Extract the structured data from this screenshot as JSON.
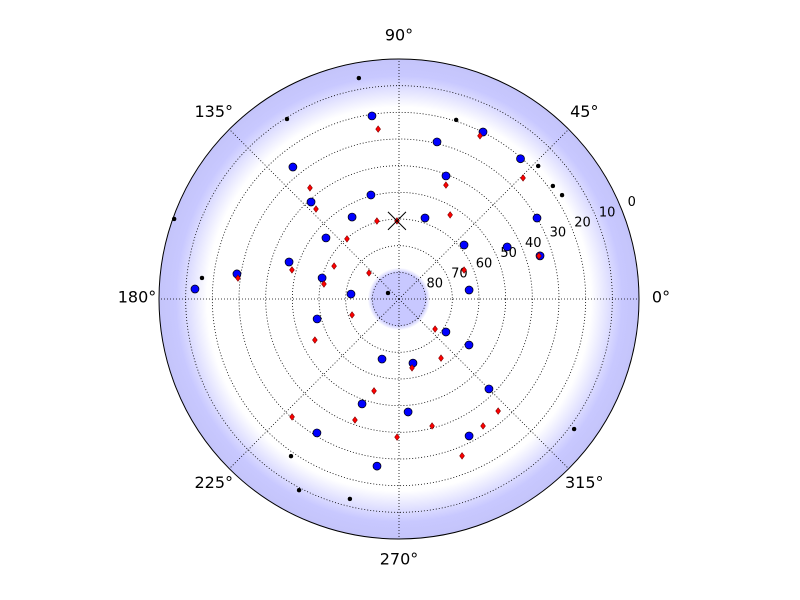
{
  "chart_data": {
    "type": "polar",
    "rlim": [
      90,
      0
    ],
    "rticks": [
      0,
      10,
      20,
      30,
      40,
      50,
      60,
      70,
      80
    ],
    "thetaticks": [
      {
        "value": 0,
        "label": "0°"
      },
      {
        "value": 45,
        "label": "45°"
      },
      {
        "value": 90,
        "label": "90°"
      },
      {
        "value": 135,
        "label": "135°"
      },
      {
        "value": 180,
        "label": "180°"
      },
      {
        "value": 225,
        "label": "225°"
      },
      {
        "value": 270,
        "label": "270°"
      },
      {
        "value": 315,
        "label": "315°"
      }
    ],
    "grid": true,
    "series": [
      {
        "color": "#000000",
        "marker": "dot",
        "theta": [
          100.3,
          121.9,
          72.3,
          43.7,
          36.3,
          32.5,
          160.4,
          173.9,
          151.4,
          323.4,
          235.5,
          242.4,
          256.2
        ],
        "r": [
          5.8,
          10.5,
          19.5,
          17.8,
          18.4,
          17.5,
          0.5,
          15.7,
          85.3,
          8.2,
          18.5,
          9.1,
          12.8
        ]
      },
      {
        "color": "#0000ff",
        "marker": "circle",
        "theta": [
          98.4,
          63.3,
          76.4,
          49.1,
          128.8,
          69.1,
          105.1,
          132.2,
          30.4,
          119.8,
          72.2,
          140.1,
          39.7,
          25.7,
          17.0,
          161.4,
          171.2,
          164.7,
          7.3,
          177.2,
          174.1,
          193.7,
          324.9,
          326.7,
          254.2,
          282.3,
          315.0,
          250.6,
          274.6,
          238.5,
          297.1,
          262.5
        ],
        "r": [
          20.6,
          19.9,
          29.4,
          20.4,
          26.5,
          40.6,
          49.6,
          40.9,
          30.0,
          54.6,
          58.1,
          54.3,
          58.3,
          45.0,
          34.7,
          46.5,
          28.5,
          60.1,
          63.5,
          13.4,
          71.9,
          58.4,
          68.5,
          58.6,
          66.6,
          65.4,
          42.3,
          48.3,
          47.5,
          31.1,
          32.3,
          26.8
        ]
      },
      {
        "color": "#ff0000",
        "marker": "diamond",
        "theta": [
          97.0,
          63.6,
          44.3,
          67.6,
          128.7,
          132.7,
          58.7,
          105.8,
          130.9,
          17.1,
          153.1,
          164.8,
          24.0,
          172.6,
          139.1,
          168.7,
          198.8,
          320.2,
          206.0,
          305.4,
          280.7,
          254.8,
          311.5,
          227.8,
          250.0,
          284.6,
          303.5,
          269.2,
          291.9,
          91.5
        ],
        "r": [
          25.8,
          21.7,
          25.0,
          43.8,
          36.6,
          44.1,
          53.1,
          59.6,
          60.2,
          35.1,
          62.7,
          48.4,
          63.3,
          29.1,
          75.1,
          61.3,
          71.4,
          72.4,
          54.9,
          62.8,
          63.7,
          54.3,
          33.9,
          30.3,
          41.7,
          40.8,
          32.9,
          38.2,
          26.6,
          60.7
        ]
      },
      {
        "color": "#000000",
        "marker": "x",
        "theta": [
          91.5
        ],
        "r": [
          60.7
        ]
      }
    ]
  }
}
